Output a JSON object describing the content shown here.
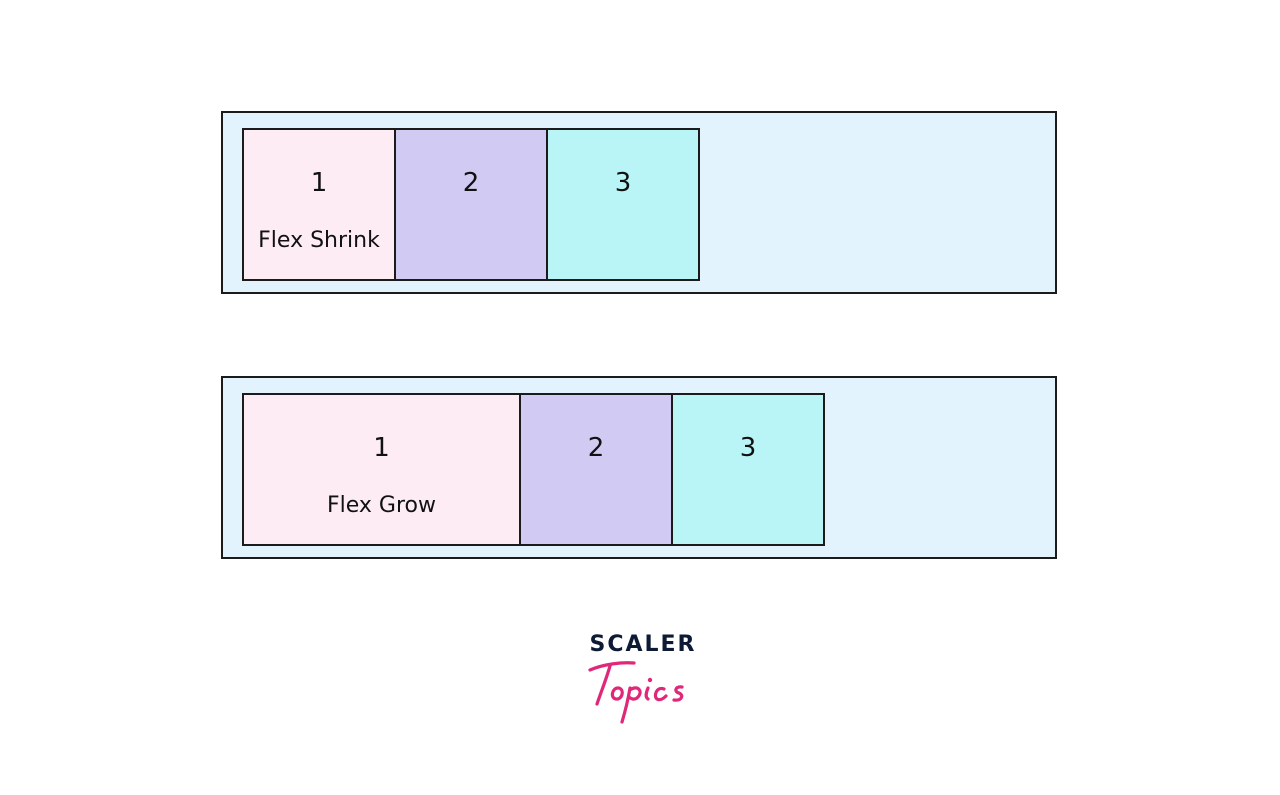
{
  "diagram": {
    "shrink": {
      "items": [
        {
          "number": "1",
          "caption": "Flex Shrink"
        },
        {
          "number": "2"
        },
        {
          "number": "3"
        }
      ]
    },
    "grow": {
      "items": [
        {
          "number": "1",
          "caption": "Flex Grow"
        },
        {
          "number": "2"
        },
        {
          "number": "3"
        }
      ]
    }
  },
  "logo": {
    "top_word": "SCALER",
    "script_word": "Topics"
  },
  "colors": {
    "container_bg": "#e3f3fd",
    "item1": "#fdecf4",
    "item2": "#d1cbf4",
    "item3": "#b9f5f6",
    "logo_navy": "#0d1a36",
    "logo_pink": "#e0287a"
  }
}
